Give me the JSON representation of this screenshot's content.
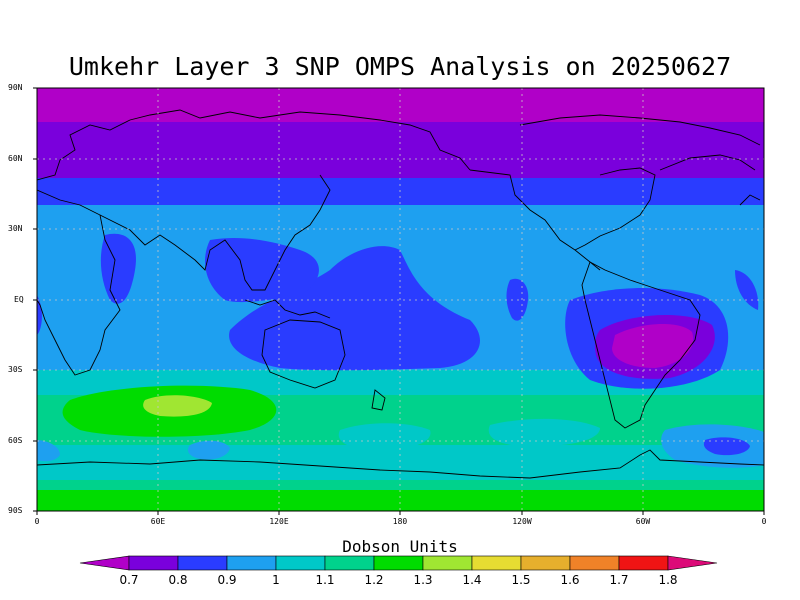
{
  "title": "Umkehr Layer 3 SNP OMPS Analysis on 20250627",
  "lat_labels": [
    "90N",
    "60N",
    "30N",
    "EQ",
    "30S",
    "60S",
    "90S"
  ],
  "lon_labels": [
    "0",
    "60E",
    "120E",
    "180",
    "120W",
    "60W",
    "0"
  ],
  "colorbar": {
    "title": "Dobson Units",
    "levels": [
      "0.7",
      "0.8",
      "0.9",
      "1",
      "1.1",
      "1.2",
      "1.3",
      "1.4",
      "1.5",
      "1.6",
      "1.7",
      "1.8"
    ],
    "colors": [
      "#b000c8",
      "#7a00dc",
      "#2a3cff",
      "#1ea0f0",
      "#00c8c8",
      "#00d28c",
      "#00dc00",
      "#a0e632",
      "#e6dc32",
      "#e6af2d",
      "#f08228",
      "#f01414",
      "#dc0a78"
    ]
  }
}
